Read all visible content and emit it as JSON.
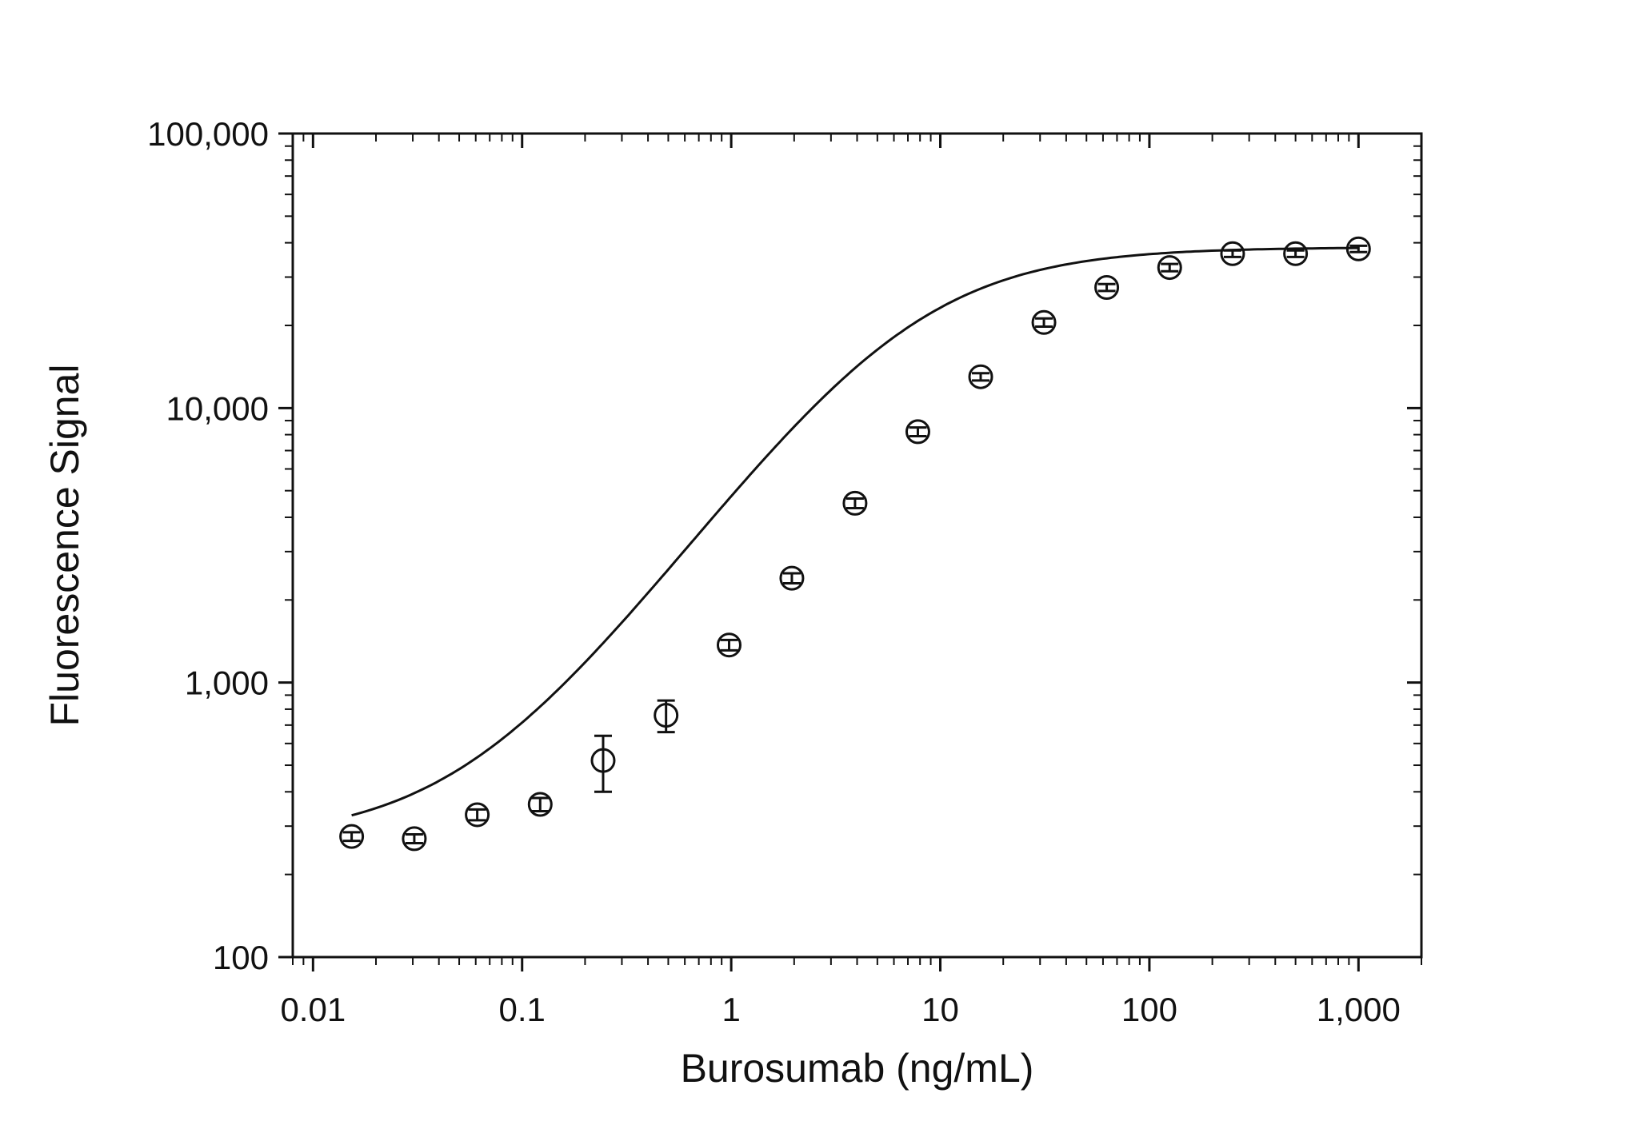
{
  "chart_data": {
    "type": "scatter",
    "title": "",
    "xlabel": "Burosumab (ng/mL)",
    "ylabel": "Fluorescence Signal",
    "x_scale": "log",
    "y_scale": "log",
    "xlim": [
      0.008,
      2000
    ],
    "ylim": [
      100,
      100000
    ],
    "x_ticks": [
      {
        "value": 0.01,
        "label": "0.01"
      },
      {
        "value": 0.1,
        "label": "0.1"
      },
      {
        "value": 1,
        "label": "1"
      },
      {
        "value": 10,
        "label": "10"
      },
      {
        "value": 100,
        "label": "100"
      },
      {
        "value": 1000,
        "label": "1,000"
      }
    ],
    "y_ticks": [
      {
        "value": 100,
        "label": "100"
      },
      {
        "value": 1000,
        "label": "1,000"
      },
      {
        "value": 10000,
        "label": "10,000"
      },
      {
        "value": 100000,
        "label": "100,000"
      }
    ],
    "grid": false,
    "legend": "none",
    "series": [
      {
        "marker": "open-circle",
        "color": "#111111",
        "x": [
          0.0153,
          0.0305,
          0.061,
          0.122,
          0.244,
          0.488,
          0.977,
          1.95,
          3.91,
          7.81,
          15.6,
          31.3,
          62.5,
          125,
          250,
          500,
          1000
        ],
        "y": [
          275,
          270,
          330,
          360,
          520,
          760,
          1370,
          2400,
          4500,
          8200,
          13000,
          20500,
          27500,
          32500,
          36500,
          36500,
          38000
        ],
        "y_err": [
          10,
          10,
          15,
          20,
          120,
          100,
          60,
          100,
          180,
          300,
          400,
          700,
          800,
          1000,
          1000,
          1000,
          1000
        ]
      }
    ],
    "fit_curve": {
      "model": "4PL",
      "bottom": 265,
      "top": 38500,
      "ec50": 6.8,
      "hill": 1.05
    }
  }
}
